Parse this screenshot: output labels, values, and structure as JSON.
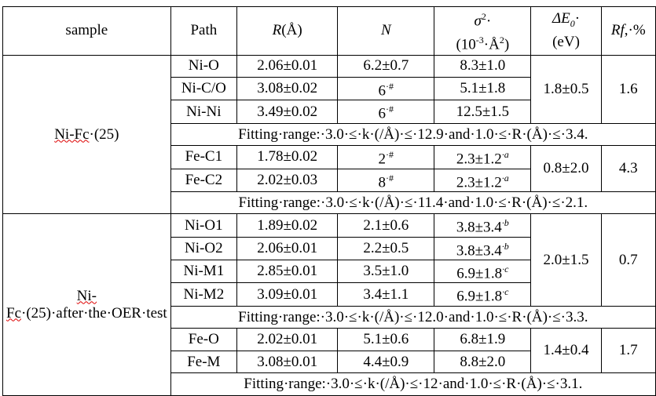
{
  "header": {
    "sample": "sample",
    "path": "Path",
    "r": {
      "symbol": "R",
      "unit": "(Å)"
    },
    "n": "N",
    "sigma": {
      "symbol": "σ",
      "exp": "2",
      "mark": "·",
      "unit": [
        "(10",
        "-3",
        "·Å",
        "2",
        ")"
      ]
    },
    "e0": {
      "symbol": "ΔE",
      "sub": "0",
      "mark": "·",
      "unit": "(eV)"
    },
    "rf": {
      "symbol": "Rf",
      "unit": ",·%"
    }
  },
  "groups": [
    {
      "sample": {
        "flagged": "Ni-Fc",
        "rest": "·(25)"
      },
      "blocks": [
        {
          "rows": [
            {
              "path": "Ni-O",
              "r": "2.06±0.01",
              "n": {
                "value": "6.2±0.7"
              },
              "sigma": {
                "value": "8.3±1.0"
              }
            },
            {
              "path": "Ni-C/O",
              "r": "3.08±0.02",
              "n": {
                "value": "6",
                "sup": "·#"
              },
              "sigma": {
                "value": "5.1±1.8"
              }
            },
            {
              "path": "Ni-Ni",
              "r": "3.49±0.02",
              "n": {
                "value": "6",
                "sup": "·#"
              },
              "sigma": {
                "value": "12.5±1.5"
              }
            }
          ],
          "e0": "1.8±0.5",
          "rf": "1.6",
          "fitting": "Fitting·range:·3.0·≤·k·(/Å)·≤·12.9·and·1.0·≤·R·(Å)·≤·3.4."
        },
        {
          "rows": [
            {
              "path": "Fe-C1",
              "r": "1.78±0.02",
              "n": {
                "value": "2",
                "sup": "·#"
              },
              "sigma": {
                "value": "2.3±1.2",
                "sup": "·a"
              }
            },
            {
              "path": "Fe-C2",
              "r": "2.02±0.03",
              "n": {
                "value": "8",
                "sup": "·#"
              },
              "sigma": {
                "value": "2.3±1.2",
                "sup": "·a"
              }
            }
          ],
          "e0": "0.8±2.0",
          "rf": "4.3",
          "fitting": "Fitting·range:·3.0·≤·k·(/Å)·≤·11.4·and·1.0·≤·R·(Å)·≤·2.1."
        }
      ]
    },
    {
      "sample": {
        "flagged": "Ni-Fc",
        "rest": "·(25)·after·the·OER·test"
      },
      "blocks": [
        {
          "rows": [
            {
              "path": "Ni-O1",
              "r": "1.89±0.02",
              "n": {
                "value": "2.1±0.6"
              },
              "sigma": {
                "value": "3.8±3.4",
                "sup": "·b"
              }
            },
            {
              "path": "Ni-O2",
              "r": "2.06±0.01",
              "n": {
                "value": "2.2±0.5"
              },
              "sigma": {
                "value": "3.8±3.4",
                "sup": "·b"
              }
            },
            {
              "path": "Ni-M1",
              "r": "2.85±0.01",
              "n": {
                "value": "3.5±1.0"
              },
              "sigma": {
                "value": "6.9±1.8",
                "sup": "·c"
              }
            },
            {
              "path": "Ni-M2",
              "r": "3.09±0.01",
              "n": {
                "value": "3.4±1.1"
              },
              "sigma": {
                "value": "6.9±1.8",
                "sup": "·c"
              }
            }
          ],
          "e0": "2.0±1.5",
          "rf": "0.7",
          "fitting": "Fitting·range:·3.0·≤·k·(/Å)·≤·12.0·and·1.0·≤·R·(Å)·≤·3.3."
        },
        {
          "rows": [
            {
              "path": "Fe-O",
              "r": "2.02±0.01",
              "n": {
                "value": "5.1±0.6"
              },
              "sigma": {
                "value": "6.8±1.9"
              }
            },
            {
              "path": "Fe-M",
              "r": "3.08±0.01",
              "n": {
                "value": "4.4±0.9"
              },
              "sigma": {
                "value": "8.8±2.0"
              }
            }
          ],
          "e0": "1.4±0.4",
          "rf": "1.7",
          "fitting": "Fitting·range:·3.0·≤·k·(/Å)·≤·12·and·1.0·≤·R·(Å)·≤·3.1."
        }
      ]
    }
  ]
}
